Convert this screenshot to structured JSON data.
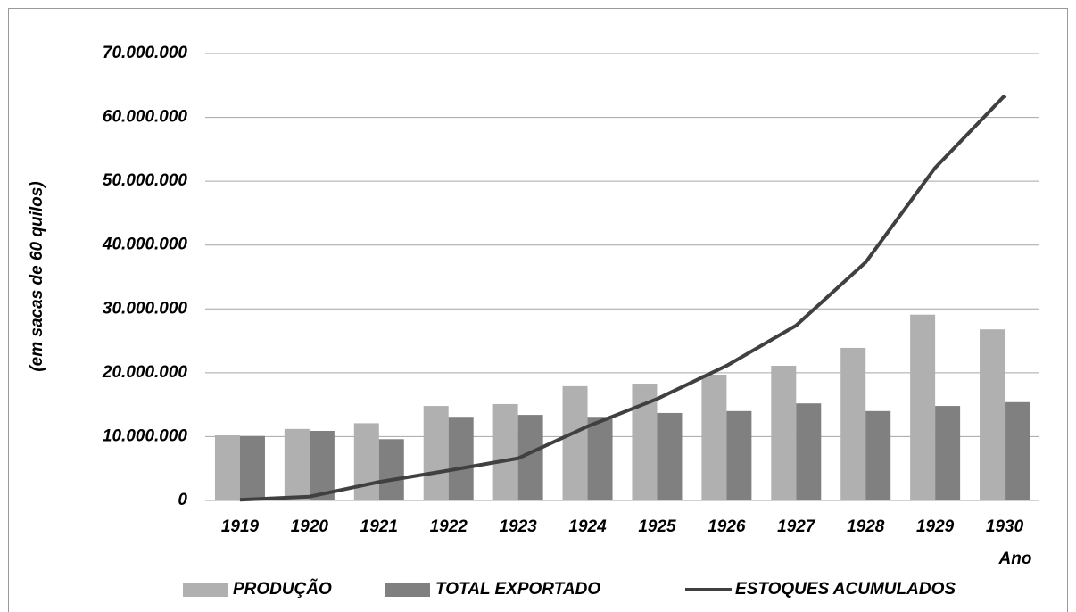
{
  "chart_data": {
    "type": "bar",
    "y_label": "(em sacas de 60 quilos)",
    "x_label": "Ano",
    "categories": [
      "1919",
      "1920",
      "1921",
      "1922",
      "1923",
      "1924",
      "1925",
      "1926",
      "1927",
      "1928",
      "1929",
      "1930"
    ],
    "series": [
      {
        "name": "PRODUÇÃO",
        "type": "bar",
        "color": "#b0b0b0",
        "values": [
          10200000,
          11200000,
          12100000,
          14800000,
          15100000,
          17900000,
          18300000,
          19700000,
          21100000,
          23900000,
          29100000,
          26800000
        ]
      },
      {
        "name": "TOTAL EXPORTADO",
        "type": "bar",
        "color": "#808080",
        "values": [
          10100000,
          10900000,
          9600000,
          13100000,
          13400000,
          13100000,
          13700000,
          14000000,
          15200000,
          14000000,
          14800000,
          15400000
        ]
      },
      {
        "name": "ESTOQUES ACUMULADOS",
        "type": "line",
        "color": "#404040",
        "values": [
          100000,
          600000,
          2900000,
          4700000,
          6600000,
          11600000,
          15900000,
          21100000,
          27400000,
          37300000,
          52100000,
          63400000
        ]
      }
    ],
    "ylim": [
      0,
      70000000
    ],
    "yticks": [
      0,
      {
        "value": 10000000,
        "label": "10.000.000"
      },
      {
        "value": 20000000,
        "label": "20.000.000"
      },
      {
        "value": 30000000,
        "label": "30.000.000"
      },
      {
        "value": 40000000,
        "label": "40.000.000"
      },
      {
        "value": 50000000,
        "label": "50.000.000"
      },
      {
        "value": 60000000,
        "label": "60.000.000"
      },
      {
        "value": 70000000,
        "label": "70.000.000"
      }
    ],
    "grid": true
  }
}
